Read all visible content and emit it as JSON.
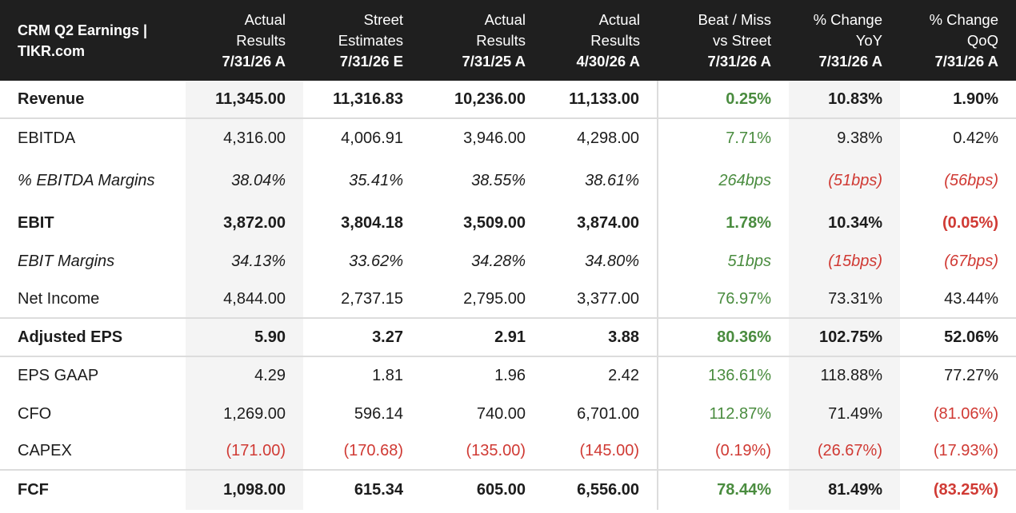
{
  "header": {
    "title": "CRM Q2 Earnings | TIKR.com",
    "columns": [
      {
        "line1": "Actual",
        "line2": "Results",
        "line3": "7/31/26 A"
      },
      {
        "line1": "Street",
        "line2": "Estimates",
        "line3": "7/31/26 E"
      },
      {
        "line1": "Actual",
        "line2": "Results",
        "line3": "7/31/25 A"
      },
      {
        "line1": "Actual",
        "line2": "Results",
        "line3": "4/30/26 A"
      },
      {
        "line1": "Beat / Miss",
        "line2": "vs Street",
        "line3": "7/31/26 A"
      },
      {
        "line1": "% Change",
        "line2": "YoY",
        "line3": "7/31/26 A"
      },
      {
        "line1": "% Change",
        "line2": "QoQ",
        "line3": "7/31/26 A"
      }
    ]
  },
  "rows": [
    {
      "label": "Revenue",
      "values": [
        "11,345.00",
        "11,316.83",
        "10,236.00",
        "11,133.00",
        "0.25%",
        "10.83%",
        "1.90%"
      ]
    },
    {
      "label": "EBITDA",
      "values": [
        "4,316.00",
        "4,006.91",
        "3,946.00",
        "4,298.00",
        "7.71%",
        "9.38%",
        "0.42%"
      ]
    },
    {
      "label": "% EBITDA Margins",
      "values": [
        "38.04%",
        "35.41%",
        "38.55%",
        "38.61%",
        "264bps",
        "(51bps)",
        "(56bps)"
      ]
    },
    {
      "label": "EBIT",
      "values": [
        "3,872.00",
        "3,804.18",
        "3,509.00",
        "3,874.00",
        "1.78%",
        "10.34%",
        "(0.05%)"
      ]
    },
    {
      "label": "EBIT Margins",
      "values": [
        "34.13%",
        "33.62%",
        "34.28%",
        "34.80%",
        "51bps",
        "(15bps)",
        "(67bps)"
      ]
    },
    {
      "label": "Net Income",
      "values": [
        "4,844.00",
        "2,737.15",
        "2,795.00",
        "3,377.00",
        "76.97%",
        "73.31%",
        "43.44%"
      ]
    },
    {
      "label": "Adjusted EPS",
      "values": [
        "5.90",
        "3.27",
        "2.91",
        "3.88",
        "80.36%",
        "102.75%",
        "52.06%"
      ]
    },
    {
      "label": "EPS GAAP",
      "values": [
        "4.29",
        "1.81",
        "1.96",
        "2.42",
        "136.61%",
        "118.88%",
        "77.27%"
      ]
    },
    {
      "label": "CFO",
      "values": [
        "1,269.00",
        "596.14",
        "740.00",
        "6,701.00",
        "112.87%",
        "71.49%",
        "(81.06%)"
      ]
    },
    {
      "label": "CAPEX",
      "values": [
        "(171.00)",
        "(170.68)",
        "(135.00)",
        "(145.00)",
        "(0.19%)",
        "(26.67%)",
        "(17.93%)"
      ]
    },
    {
      "label": "FCF",
      "values": [
        "1,098.00",
        "615.34",
        "605.00",
        "6,556.00",
        "78.44%",
        "81.49%",
        "(83.25%)"
      ]
    }
  ],
  "colors": {
    "header_bg": "#1f1f1f",
    "positive": "#4a8c3f",
    "negative": "#d03a34",
    "shade": "#f4f4f4"
  }
}
